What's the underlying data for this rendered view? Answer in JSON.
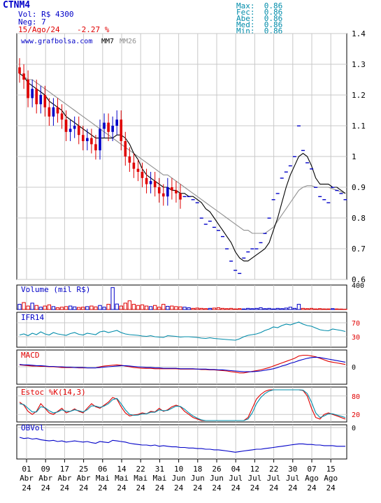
{
  "header": {
    "ticker": "CTNM4",
    "volume": "Vol: R$ 4300",
    "trades": "Neg: 7",
    "date": "15/Ago/24",
    "change": "-2.27 %",
    "max": "Max:  0.86",
    "open": "Fec:  0.86",
    "abe": "Abe:  0.86",
    "med": "Med:  0.86",
    "min": "Min:  0.86"
  },
  "colors": {
    "up": "#0000c8",
    "down": "#e00000",
    "ma7": "#000000",
    "ma26": "#909090",
    "ifr": "#008caa",
    "grid": "#c8c8c8",
    "label_red": "#e00000",
    "label_blue": "#0000c8"
  },
  "chart_data": [
    {
      "type": "candlestick",
      "source": "www.grafbolsa.com",
      "legend": [
        "MM7",
        "MM26"
      ],
      "ylim": [
        0.6,
        1.4
      ],
      "yticks": [
        "1.4",
        "1.3",
        "1.2",
        "1.1",
        "1",
        "0.9",
        "0.8",
        "0.7",
        "0.6"
      ],
      "close": [
        1.27,
        1.25,
        1.19,
        1.22,
        1.17,
        1.2,
        1.16,
        1.13,
        1.16,
        1.14,
        1.12,
        1.08,
        1.09,
        1.1,
        1.07,
        1.05,
        1.06,
        1.04,
        1.02,
        1.09,
        1.11,
        1.08,
        1.1,
        1.12,
        1.05,
        1.0,
        0.98,
        0.96,
        0.95,
        0.93,
        0.91,
        0.92,
        0.9,
        0.88,
        0.87,
        0.9,
        0.89,
        0.88,
        0.86,
        0.87,
        0.87,
        0.86,
        0.85,
        0.8,
        0.78,
        0.79,
        0.77,
        0.76,
        0.74,
        0.7,
        0.66,
        0.63,
        0.62,
        0.67,
        0.69,
        0.7,
        0.7,
        0.72,
        0.75,
        0.8,
        0.86,
        0.88,
        0.93,
        0.95,
        0.97,
        1.0,
        1.1,
        1.02,
        0.98,
        0.96,
        0.9,
        0.87,
        0.86,
        0.85,
        0.9,
        0.89,
        0.88,
        0.86
      ],
      "ma7": [
        1.27,
        1.26,
        1.24,
        1.23,
        1.22,
        1.21,
        1.2,
        1.18,
        1.17,
        1.16,
        1.15,
        1.13,
        1.12,
        1.11,
        1.1,
        1.09,
        1.08,
        1.07,
        1.06,
        1.06,
        1.06,
        1.06,
        1.06,
        1.07,
        1.07,
        1.06,
        1.04,
        1.01,
        0.99,
        0.96,
        0.94,
        0.93,
        0.92,
        0.91,
        0.9,
        0.9,
        0.89,
        0.89,
        0.88,
        0.88,
        0.87,
        0.87,
        0.86,
        0.85,
        0.83,
        0.82,
        0.8,
        0.78,
        0.76,
        0.74,
        0.72,
        0.69,
        0.67,
        0.66,
        0.66,
        0.67,
        0.68,
        0.69,
        0.7,
        0.72,
        0.76,
        0.8,
        0.85,
        0.9,
        0.94,
        0.97,
        1.0,
        1.01,
        1.0,
        0.97,
        0.93,
        0.91,
        0.91,
        0.91,
        0.9,
        0.9,
        0.89,
        0.88
      ],
      "ma26": [
        1.27,
        1.26,
        1.25,
        1.25,
        1.24,
        1.23,
        1.22,
        1.21,
        1.2,
        1.19,
        1.18,
        1.17,
        1.16,
        1.15,
        1.14,
        1.13,
        1.12,
        1.11,
        1.1,
        1.09,
        1.08,
        1.07,
        1.06,
        1.05,
        1.04,
        1.03,
        1.02,
        1.01,
        1.0,
        0.99,
        0.98,
        0.97,
        0.96,
        0.95,
        0.94,
        0.94,
        0.93,
        0.92,
        0.91,
        0.9,
        0.89,
        0.88,
        0.87,
        0.86,
        0.85,
        0.84,
        0.83,
        0.82,
        0.81,
        0.8,
        0.79,
        0.78,
        0.77,
        0.76,
        0.76,
        0.75,
        0.75,
        0.75,
        0.75,
        0.76,
        0.77,
        0.79,
        0.81,
        0.83,
        0.85,
        0.87,
        0.89,
        0.9,
        0.905,
        0.905,
        0.9,
        0.9,
        0.9,
        0.9,
        0.895,
        0.89,
        0.885,
        0.88
      ]
    },
    {
      "type": "bar",
      "title": "Volume (mil R$)",
      "yticks": [
        "400"
      ],
      "ylim": [
        0,
        400
      ],
      "values": [
        90,
        120,
        60,
        110,
        70,
        40,
        60,
        80,
        50,
        30,
        40,
        50,
        60,
        45,
        35,
        40,
        50,
        60,
        45,
        70,
        40,
        90,
        380,
        95,
        60,
        110,
        150,
        90,
        70,
        80,
        60,
        50,
        70,
        40,
        90,
        55,
        60,
        50,
        45,
        40,
        30,
        20,
        25,
        20,
        15,
        20,
        25,
        30,
        20,
        15,
        20,
        10,
        15,
        10,
        20,
        15,
        20,
        30,
        15,
        20,
        10,
        20,
        15,
        25,
        40,
        20,
        90,
        20,
        15,
        20,
        10,
        15,
        10,
        10,
        15,
        10,
        8,
        5
      ]
    },
    {
      "type": "line",
      "title": "IFR14",
      "ylim": [
        0,
        100
      ],
      "yticks": [
        "70",
        "30"
      ],
      "values": [
        35,
        38,
        33,
        40,
        36,
        44,
        38,
        35,
        42,
        38,
        36,
        34,
        39,
        42,
        37,
        35,
        40,
        38,
        36,
        44,
        46,
        42,
        45,
        48,
        42,
        38,
        36,
        35,
        34,
        32,
        31,
        33,
        30,
        29,
        28,
        33,
        32,
        31,
        29,
        30,
        30,
        29,
        28,
        26,
        25,
        27,
        25,
        24,
        23,
        22,
        21,
        20,
        24,
        30,
        34,
        36,
        38,
        42,
        48,
        52,
        58,
        56,
        62,
        66,
        64,
        68,
        72,
        66,
        62,
        60,
        55,
        50,
        48,
        47,
        52,
        50,
        48,
        45
      ]
    },
    {
      "type": "line",
      "title": "MACD",
      "yticks": [
        "0"
      ],
      "series": [
        {
          "values": [
            5,
            4,
            3,
            2,
            2,
            1,
            1,
            0,
            0,
            -1,
            -2,
            -2,
            -2,
            -2,
            -3,
            -3,
            -3,
            -3,
            -3,
            0,
            2,
            3,
            4,
            5,
            4,
            2,
            0,
            -2,
            -3,
            -4,
            -4,
            -4,
            -5,
            -5,
            -5,
            -5,
            -5,
            -5,
            -6,
            -6,
            -6,
            -6,
            -6,
            -7,
            -7,
            -8,
            -8,
            -9,
            -10,
            -11,
            -13,
            -14,
            -16,
            -16,
            -14,
            -12,
            -10,
            -8,
            -5,
            -2,
            2,
            6,
            10,
            14,
            18,
            22,
            28,
            30,
            30,
            28,
            26,
            22,
            18,
            14,
            12,
            10,
            8,
            6
          ]
        },
        {
          "values": [
            6,
            5,
            5,
            4,
            3,
            3,
            2,
            1,
            1,
            0,
            0,
            -1,
            -1,
            -2,
            -2,
            -2,
            -3,
            -3,
            -3,
            -2,
            -1,
            0,
            1,
            2,
            3,
            3,
            2,
            1,
            0,
            -1,
            -2,
            -2,
            -3,
            -3,
            -4,
            -4,
            -4,
            -4,
            -5,
            -5,
            -5,
            -5,
            -6,
            -6,
            -6,
            -7,
            -7,
            -8,
            -8,
            -9,
            -10,
            -11,
            -12,
            -13,
            -13,
            -13,
            -12,
            -11,
            -9,
            -7,
            -5,
            -2,
            2,
            5,
            9,
            12,
            16,
            19,
            22,
            24,
            25,
            24,
            22,
            20,
            18,
            16,
            14,
            12
          ]
        }
      ]
    },
    {
      "type": "line",
      "title": "Estoc %K(14,3)",
      "ylim": [
        0,
        100
      ],
      "yticks": [
        "80",
        "20"
      ],
      "series": [
        {
          "name": "%K",
          "values": [
            60,
            50,
            30,
            20,
            30,
            55,
            40,
            25,
            20,
            30,
            40,
            25,
            30,
            38,
            30,
            25,
            40,
            55,
            45,
            40,
            50,
            60,
            75,
            70,
            45,
            25,
            15,
            18,
            20,
            25,
            22,
            30,
            28,
            40,
            30,
            35,
            45,
            50,
            45,
            30,
            20,
            10,
            5,
            0,
            0,
            0,
            0,
            0,
            0,
            0,
            0,
            0,
            0,
            0,
            10,
            40,
            70,
            85,
            95,
            100,
            100,
            100,
            100,
            100,
            100,
            100,
            100,
            98,
            80,
            40,
            10,
            5,
            20,
            25,
            20,
            15,
            10,
            5
          ]
        },
        {
          "name": "%D",
          "values": [
            55,
            52,
            40,
            28,
            28,
            45,
            42,
            32,
            25,
            28,
            35,
            30,
            30,
            35,
            32,
            28,
            35,
            48,
            47,
            43,
            47,
            55,
            68,
            72,
            55,
            35,
            20,
            17,
            18,
            22,
            22,
            27,
            27,
            35,
            32,
            33,
            40,
            47,
            46,
            37,
            25,
            15,
            8,
            2,
            0,
            0,
            0,
            0,
            0,
            0,
            0,
            0,
            0,
            0,
            5,
            25,
            55,
            75,
            88,
            96,
            100,
            100,
            100,
            100,
            100,
            100,
            100,
            99,
            88,
            60,
            25,
            10,
            15,
            22,
            22,
            18,
            14,
            10
          ]
        }
      ]
    },
    {
      "type": "line",
      "title": "OBVol",
      "yticks": [
        "0"
      ],
      "values": [
        40,
        38,
        39,
        37,
        38,
        36,
        35,
        34,
        35,
        33,
        34,
        32,
        33,
        34,
        33,
        32,
        33,
        31,
        30,
        33,
        32,
        31,
        35,
        34,
        33,
        32,
        30,
        29,
        28,
        27,
        27,
        26,
        27,
        25,
        26,
        25,
        24,
        24,
        23,
        23,
        22,
        22,
        21,
        21,
        20,
        20,
        19,
        19,
        18,
        17,
        16,
        15,
        16,
        17,
        18,
        19,
        20,
        20,
        21,
        22,
        23,
        24,
        25,
        26,
        27,
        28,
        29,
        29,
        28,
        28,
        27,
        27,
        26,
        26,
        26,
        25,
        25,
        25
      ]
    }
  ],
  "x_axis": {
    "days": [
      "01",
      "09",
      "17",
      "25",
      "06",
      "14",
      "22",
      "31",
      "10",
      "18",
      "26",
      "04",
      "12",
      "22",
      "30",
      "07",
      "15"
    ],
    "months": [
      "Abr",
      "Abr",
      "Abr",
      "Abr",
      "Mai",
      "Mai",
      "Mai",
      "Mai",
      "Jun",
      "Jun",
      "Jun",
      "Jul",
      "Jul",
      "Jul",
      "Jul",
      "Ago",
      "Ago"
    ],
    "years": [
      "24",
      "24",
      "24",
      "24",
      "24",
      "24",
      "24",
      "24",
      "24",
      "24",
      "24",
      "24",
      "24",
      "24",
      "24",
      "24",
      "24"
    ]
  }
}
